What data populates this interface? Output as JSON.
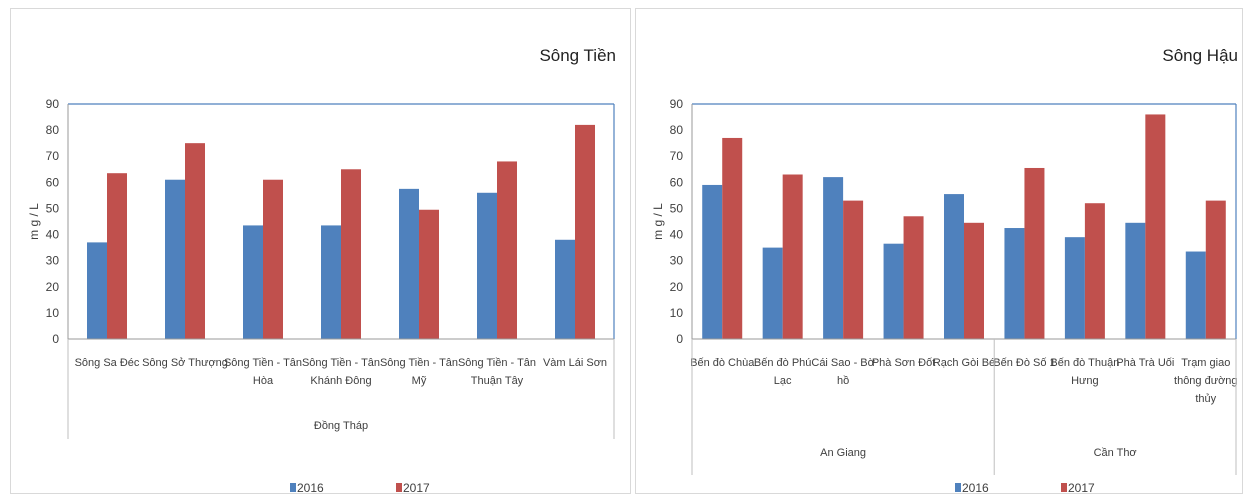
{
  "colors": {
    "s2016": "#4f81bd",
    "s2017": "#c0504d",
    "axis": "#4f81bd",
    "grid": "#d9d9d9",
    "text": "#404040"
  },
  "chart_data": [
    {
      "type": "bar",
      "title": "Sông Tiền",
      "ylabel": "m g / L",
      "xlabel": "",
      "ylim": [
        0,
        90
      ],
      "yticks": [
        0,
        10,
        20,
        30,
        40,
        50,
        60,
        70,
        80,
        90
      ],
      "grid": false,
      "legend_position": "bottom",
      "categories": [
        [
          "Sông Sa Đéc"
        ],
        [
          "Sông Sở Thượng"
        ],
        [
          "Sông Tiền - Tân",
          "Hòa"
        ],
        [
          "Sông Tiền - Tân",
          "Khánh Đông"
        ],
        [
          "Sông Tiền - Tân",
          "Mỹ"
        ],
        [
          "Sông Tiền - Tân",
          "Thuận Tây"
        ],
        [
          "Vàm Lái Sơn"
        ]
      ],
      "groups": [
        {
          "label": "Đồng Tháp",
          "count": 7
        }
      ],
      "series": [
        {
          "name": "2016",
          "values": [
            37,
            61,
            43.5,
            43.5,
            57.5,
            56,
            38
          ]
        },
        {
          "name": "2017",
          "values": [
            63.5,
            75,
            61,
            65,
            49.5,
            68,
            82
          ]
        }
      ]
    },
    {
      "type": "bar",
      "title": "Sông Hậu",
      "ylabel": "m g / L",
      "xlabel": "",
      "ylim": [
        0,
        90
      ],
      "yticks": [
        0,
        10,
        20,
        30,
        40,
        50,
        60,
        70,
        80,
        90
      ],
      "grid": false,
      "legend_position": "bottom",
      "categories": [
        [
          "Bến đò Chùa"
        ],
        [
          "Bến đò Phú",
          "Lạc"
        ],
        [
          "Cái Sao - Bờ",
          "hồ"
        ],
        [
          "Phà Sơn Đốt"
        ],
        [
          "Rạch Gòi Bé"
        ],
        [
          "Bến Đò Số 1"
        ],
        [
          "Bến đò Thuận",
          "Hưng"
        ],
        [
          "Phà Trà Uối"
        ],
        [
          "Trạm giao",
          "thông đường",
          "thủy"
        ]
      ],
      "groups": [
        {
          "label": "An Giang",
          "count": 5
        },
        {
          "label": "Cần Thơ",
          "count": 4
        }
      ],
      "series": [
        {
          "name": "2016",
          "values": [
            59,
            35,
            62,
            36.5,
            55.5,
            42.5,
            39,
            44.5,
            33.5
          ]
        },
        {
          "name": "2017",
          "values": [
            77,
            63,
            53,
            47,
            44.5,
            65.5,
            52,
            86,
            53
          ]
        }
      ]
    }
  ]
}
